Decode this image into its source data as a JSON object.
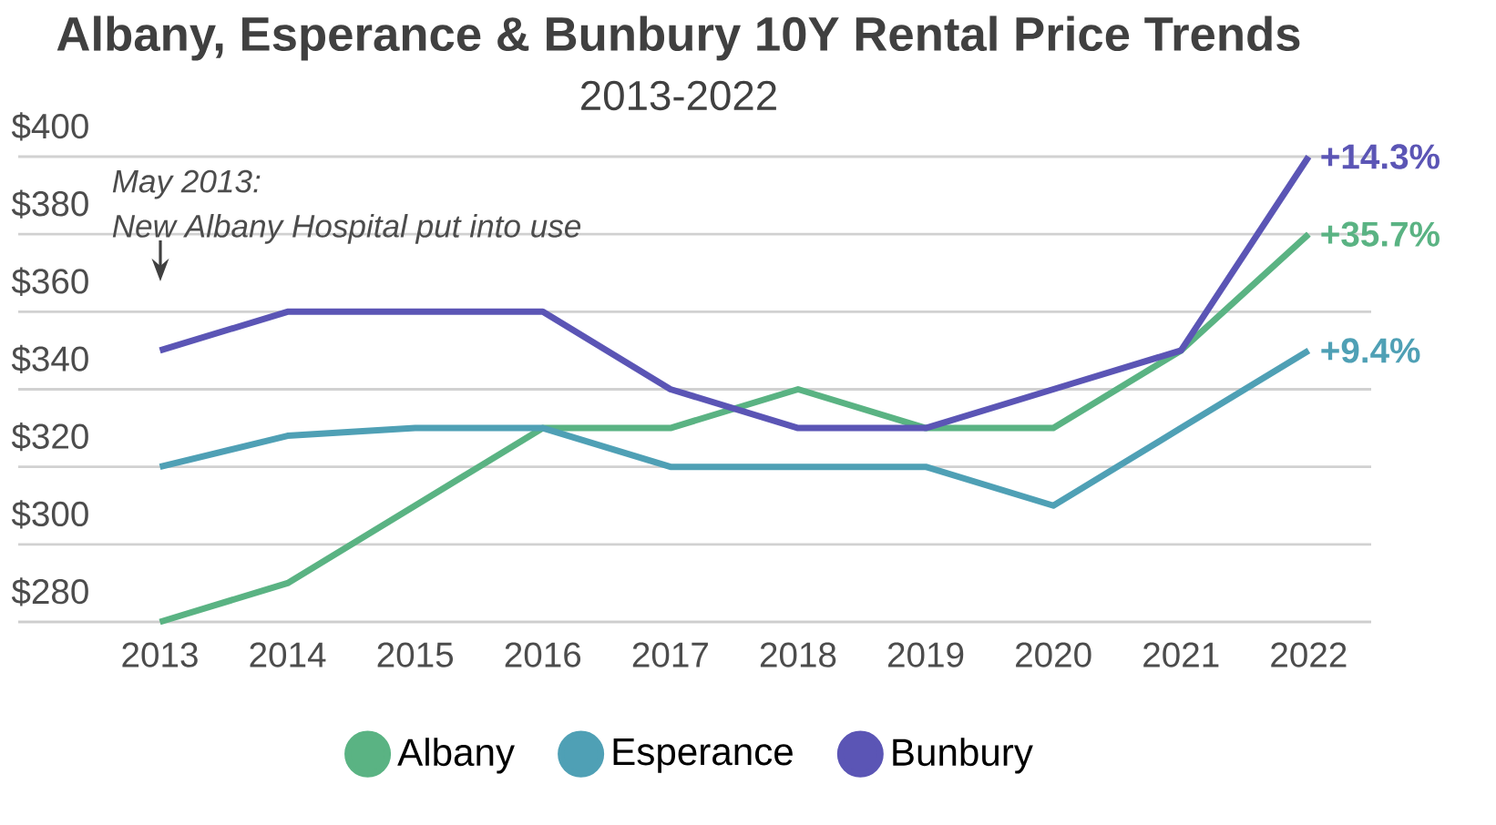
{
  "chart_data": {
    "type": "line",
    "title": "Albany, Esperance & Bunbury 10Y Rental Price Trends",
    "subtitle": "2013-2022",
    "categories": [
      "2013",
      "2014",
      "2015",
      "2016",
      "2017",
      "2018",
      "2019",
      "2020",
      "2021",
      "2022"
    ],
    "series": [
      {
        "name": "Albany",
        "color": "#5ab383",
        "values": [
          280,
          290,
          310,
          330,
          330,
          340,
          330,
          330,
          350,
          380
        ]
      },
      {
        "name": "Esperance",
        "color": "#4fa0b5",
        "values": [
          320,
          328,
          330,
          330,
          320,
          320,
          320,
          310,
          330,
          350
        ]
      },
      {
        "name": "Bunbury",
        "color": "#5b55b5",
        "values": [
          350,
          360,
          360,
          360,
          340,
          330,
          330,
          340,
          350,
          400
        ]
      }
    ],
    "ylim": [
      280,
      400
    ],
    "yticks": [
      {
        "value": 280,
        "label": "$280"
      },
      {
        "value": 300,
        "label": "$300"
      },
      {
        "value": 320,
        "label": "$320"
      },
      {
        "value": 340,
        "label": "$340"
      },
      {
        "value": 360,
        "label": "$360"
      },
      {
        "value": 380,
        "label": "$380"
      },
      {
        "value": 400,
        "label": "$400"
      }
    ],
    "grid": "y",
    "legend": "bottom",
    "marker": "none",
    "line_style": "solid",
    "annotations": [
      {
        "text": "+14.3%",
        "x": "2022",
        "y": 400
      },
      {
        "text": "+35.7%",
        "x": "2022",
        "y": 380
      },
      {
        "text": "+9.4%",
        "x": "2022",
        "y": 350
      },
      "May 2013:\nNew Albany Hospital put into use"
    ]
  }
}
